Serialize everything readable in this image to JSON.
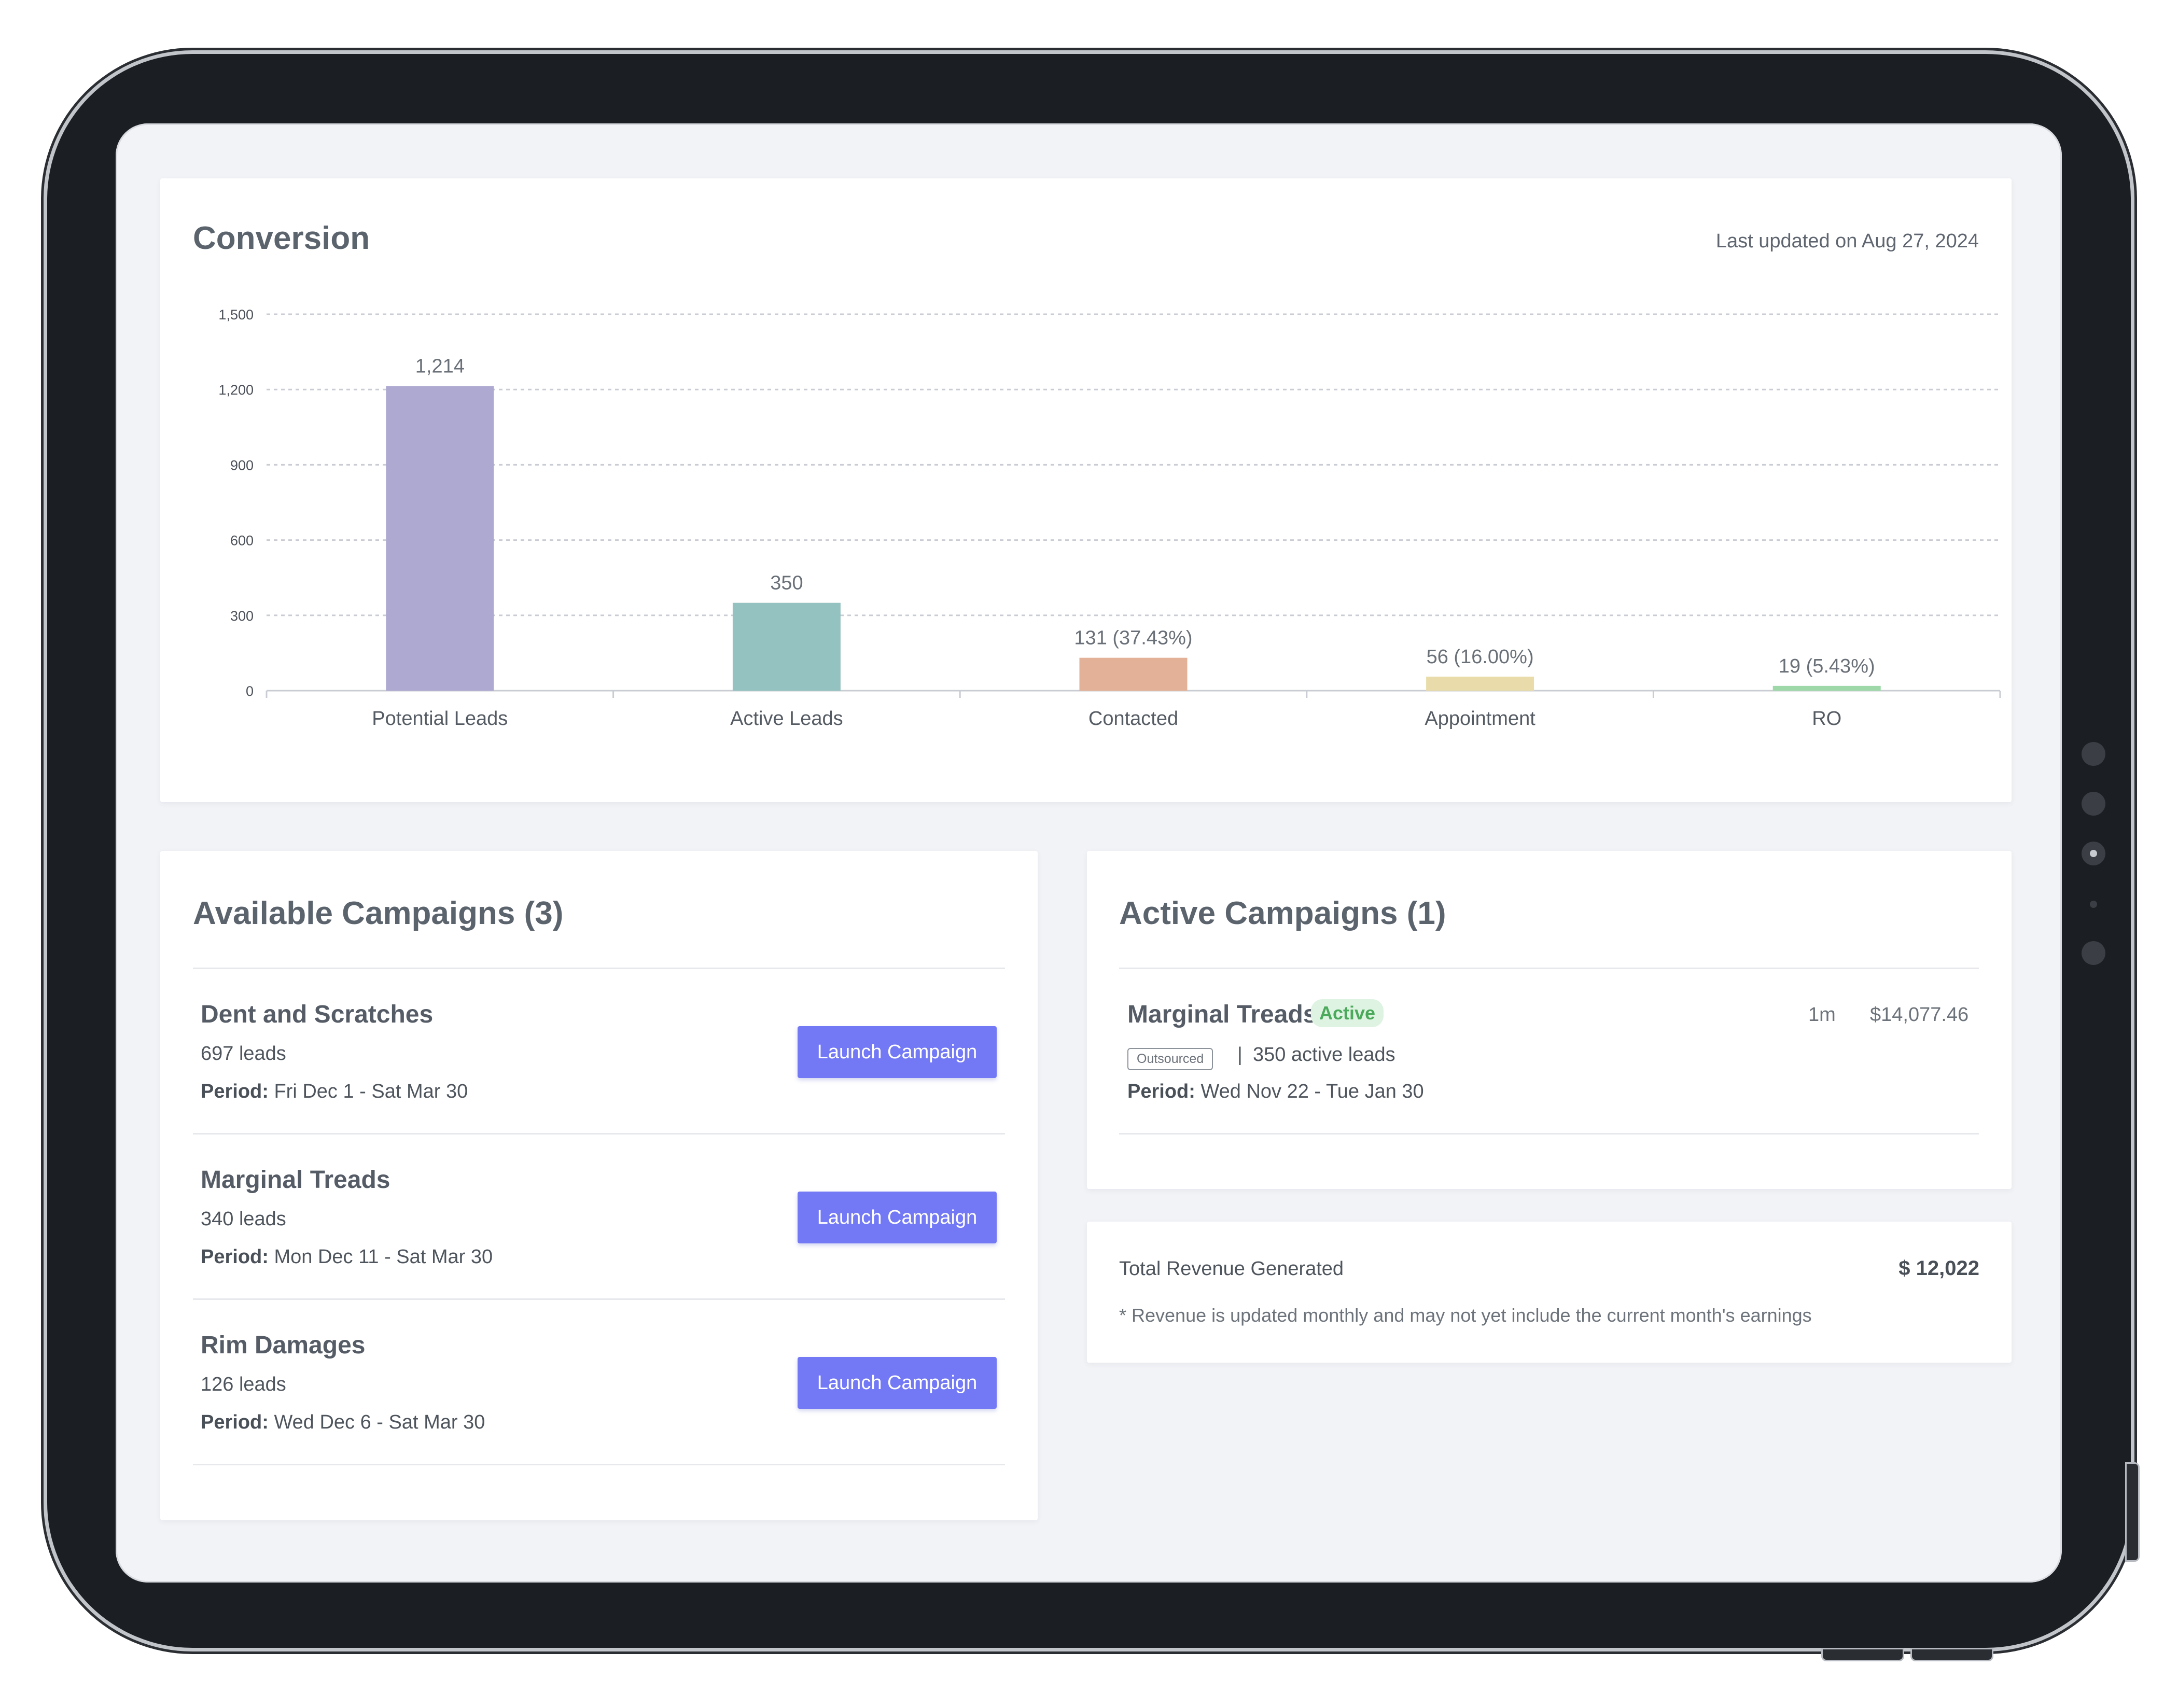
{
  "conversion": {
    "title": "Conversion",
    "last_updated": "Last updated on Aug 27, 2024"
  },
  "chart_data": {
    "type": "bar",
    "categories": [
      "Potential Leads",
      "Active Leads",
      "Contacted",
      "Appointment",
      "RO"
    ],
    "values": [
      1214,
      350,
      131,
      56,
      19
    ],
    "data_labels": [
      "1,214",
      "350",
      "131 (37.43%)",
      "56 (16.00%)",
      "19 (5.43%)"
    ],
    "colors": [
      "#aea9d1",
      "#93c2c0",
      "#e2b197",
      "#e9dcaa",
      "#9ed8a9"
    ],
    "y_ticks": [
      0,
      300,
      600,
      900,
      1200,
      1500
    ],
    "y_tick_labels": [
      "0",
      "300",
      "600",
      "900",
      "1,200",
      "1,500"
    ],
    "ylim": [
      0,
      1500
    ],
    "grid": true,
    "title": "",
    "xlabel": "",
    "ylabel": ""
  },
  "available": {
    "title": "Available Campaigns (3)",
    "items": [
      {
        "name": "Dent and Scratches",
        "leads": "697 leads",
        "period_label": "Period:",
        "period": "Fri Dec 1 - Sat Mar 30",
        "button": "Launch Campaign"
      },
      {
        "name": "Marginal Treads",
        "leads": "340 leads",
        "period_label": "Period:",
        "period": "Mon Dec 11 - Sat Mar 30",
        "button": "Launch Campaign"
      },
      {
        "name": "Rim Damages",
        "leads": "126 leads",
        "period_label": "Period:",
        "period": "Wed Dec 6 - Sat Mar 30",
        "button": "Launch Campaign"
      }
    ]
  },
  "active": {
    "title": "Active Campaigns (1)",
    "item": {
      "name": "Marginal Treads",
      "status": "Active",
      "duration": "1m",
      "amount": "$14,077.46",
      "tag": "Outsourced",
      "separator": "|",
      "active_leads": "350 active leads",
      "period_label": "Period:",
      "period": "Wed Nov 22 - Tue Jan 30"
    }
  },
  "revenue": {
    "label": "Total Revenue Generated",
    "value": "$ 12,022",
    "note": "* Revenue is updated monthly and may not yet include the current month's earnings"
  }
}
